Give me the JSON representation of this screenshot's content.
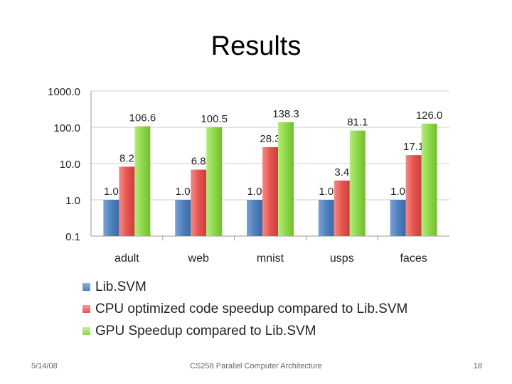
{
  "slide": {
    "title": "Results",
    "footer_date": "5/14/08",
    "footer_course": "CS258 Parallel Computer Architecture",
    "footer_page": "18"
  },
  "chart_data": {
    "type": "bar",
    "yscale": "log",
    "ylim": [
      0.1,
      1000
    ],
    "ytick_labels": [
      "1000.0",
      "100.0",
      "10.0",
      "1.0",
      "0.1"
    ],
    "yticks": [
      1000,
      100,
      10,
      1,
      0.1
    ],
    "grid": true,
    "legend_position": "bottom",
    "categories": [
      "adult",
      "web",
      "mnist",
      "usps",
      "faces"
    ],
    "series": [
      {
        "name": "Lib.SVM",
        "color": "#4f81bd",
        "values": [
          1.0,
          1.0,
          1.0,
          1.0,
          1.0
        ],
        "labels": [
          "1.0",
          "1.0",
          "1.0",
          "1.0",
          "1.0"
        ]
      },
      {
        "name": "CPU optimized code speedup compared to Lib.SVM",
        "color": "#e8534f",
        "values": [
          8.2,
          6.8,
          28.3,
          3.4,
          17.1
        ],
        "labels": [
          "8.2",
          "6.8",
          "28.3",
          "3.4",
          "17.1"
        ]
      },
      {
        "name": "GPU Speedup compared to Lib.SVM",
        "color": "#8ed64a",
        "values": [
          106.6,
          100.5,
          138.3,
          81.1,
          126.0
        ],
        "labels": [
          "106.6",
          "100.5",
          "138.3",
          "81.1",
          "126.0"
        ]
      }
    ]
  }
}
